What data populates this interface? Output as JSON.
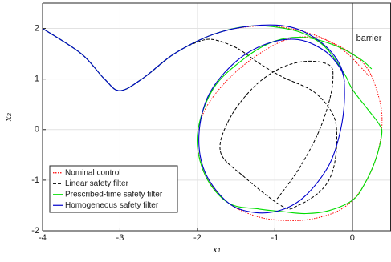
{
  "chart_data": {
    "type": "line",
    "title": "",
    "xlabel": "x₁",
    "ylabel": "x₂",
    "xlim": [
      -4,
      0.5
    ],
    "ylim": [
      -2,
      2.5
    ],
    "xticks": [
      -4,
      -3,
      -2,
      -1,
      0
    ],
    "yticks": [
      -2,
      -1,
      0,
      1,
      2
    ],
    "xtick_labels": [
      "-4",
      "-3",
      "-2",
      "-1",
      "0"
    ],
    "ytick_labels": [
      "-2",
      "-1",
      "0",
      "1",
      "2"
    ],
    "grid": true,
    "legend_position": "bottom-left",
    "annotations": [
      {
        "text": "barrier",
        "x": 0.05,
        "y": 1.8
      }
    ],
    "barrier": {
      "x": 0,
      "color": "#000000"
    },
    "series": [
      {
        "name": "Nominal control",
        "color": "#ff0000",
        "style": "dotted",
        "x": [
          -4.0,
          -3.5,
          -3.2,
          -3.0,
          -2.7,
          -2.3,
          -1.8,
          -1.3,
          -0.8,
          -0.3,
          0.15,
          0.35,
          0.38,
          0.3,
          0.15,
          0.0,
          -0.2,
          -0.5,
          -0.8,
          -1.2,
          -1.6,
          -1.9,
          -2.0,
          -1.9,
          -1.6,
          -1.2,
          -0.8,
          -0.4,
          -0.1,
          0.1,
          0.22
        ],
        "y": [
          2.0,
          1.5,
          1.0,
          0.77,
          1.02,
          1.5,
          1.88,
          2.04,
          2.0,
          1.75,
          1.3,
          0.6,
          0.0,
          -0.6,
          -1.1,
          -1.4,
          -1.62,
          -1.76,
          -1.8,
          -1.73,
          -1.45,
          -0.9,
          -0.2,
          0.4,
          1.0,
          1.5,
          1.8,
          1.8,
          1.55,
          1.25,
          1.05
        ]
      },
      {
        "name": "Linear safety filter",
        "color": "#000000",
        "style": "dashed",
        "x": [
          -4.0,
          -3.5,
          -3.2,
          -3.0,
          -2.7,
          -2.3,
          -2.0,
          -1.8,
          -1.5,
          -1.2,
          -0.9,
          -0.5,
          -0.25,
          -0.2,
          -0.25,
          -0.4,
          -0.7,
          -0.9,
          -1.4,
          -1.7,
          -1.6,
          -1.3,
          -0.95,
          -0.6,
          -0.3,
          -0.25,
          -0.3,
          -0.45,
          -0.7,
          -0.97
        ],
        "y": [
          2.0,
          1.5,
          1.0,
          0.77,
          1.02,
          1.5,
          1.73,
          1.78,
          1.62,
          1.31,
          1.04,
          0.75,
          0.3,
          -0.2,
          -0.8,
          -1.2,
          -1.5,
          -1.52,
          -0.93,
          -0.45,
          0.17,
          0.8,
          1.2,
          1.35,
          1.28,
          1.03,
          0.55,
          -0.1,
          -0.8,
          -1.37
        ]
      },
      {
        "name": "Prescribed-time safety filter",
        "color": "#00dd00",
        "style": "solid",
        "x": [
          -4.0,
          -3.5,
          -3.2,
          -3.0,
          -2.7,
          -2.3,
          -1.8,
          -1.3,
          -0.8,
          -0.5,
          -0.3,
          -0.1,
          0.0,
          0.2,
          0.35,
          0.38,
          0.3,
          0.15,
          0.0,
          -0.3,
          -0.6,
          -0.9,
          -1.2,
          -1.6,
          -1.9,
          -2.0,
          -1.8,
          -1.4,
          -1.0,
          -0.6,
          -0.2,
          0.1,
          0.25
        ],
        "y": [
          2.0,
          1.5,
          1.0,
          0.77,
          1.02,
          1.5,
          1.88,
          2.05,
          1.98,
          1.8,
          1.55,
          1.1,
          0.8,
          0.4,
          0.1,
          -0.1,
          -0.6,
          -1.1,
          -1.4,
          -1.6,
          -1.66,
          -1.62,
          -1.57,
          -1.45,
          -0.9,
          -0.1,
          0.8,
          1.4,
          1.75,
          1.82,
          1.65,
          1.4,
          1.2
        ]
      },
      {
        "name": "Homogeneous safety filter",
        "color": "#0000cc",
        "style": "solid",
        "x": [
          -4.0,
          -3.5,
          -3.2,
          -3.0,
          -2.7,
          -2.3,
          -1.8,
          -1.3,
          -0.8,
          -0.4,
          -0.15,
          -0.1,
          -0.15,
          -0.3,
          -0.6,
          -0.9,
          -1.25,
          -1.6,
          -1.9,
          -1.98,
          -1.85,
          -1.5,
          -1.1,
          -0.7,
          -0.35,
          -0.15,
          -0.1
        ],
        "y": [
          2.0,
          1.5,
          1.0,
          0.77,
          1.02,
          1.5,
          1.88,
          2.05,
          2.03,
          1.72,
          1.25,
          0.7,
          0.0,
          -0.7,
          -1.3,
          -1.58,
          -1.64,
          -1.45,
          -0.85,
          -0.1,
          0.7,
          1.35,
          1.7,
          1.78,
          1.55,
          1.2,
          0.95
        ]
      }
    ]
  }
}
